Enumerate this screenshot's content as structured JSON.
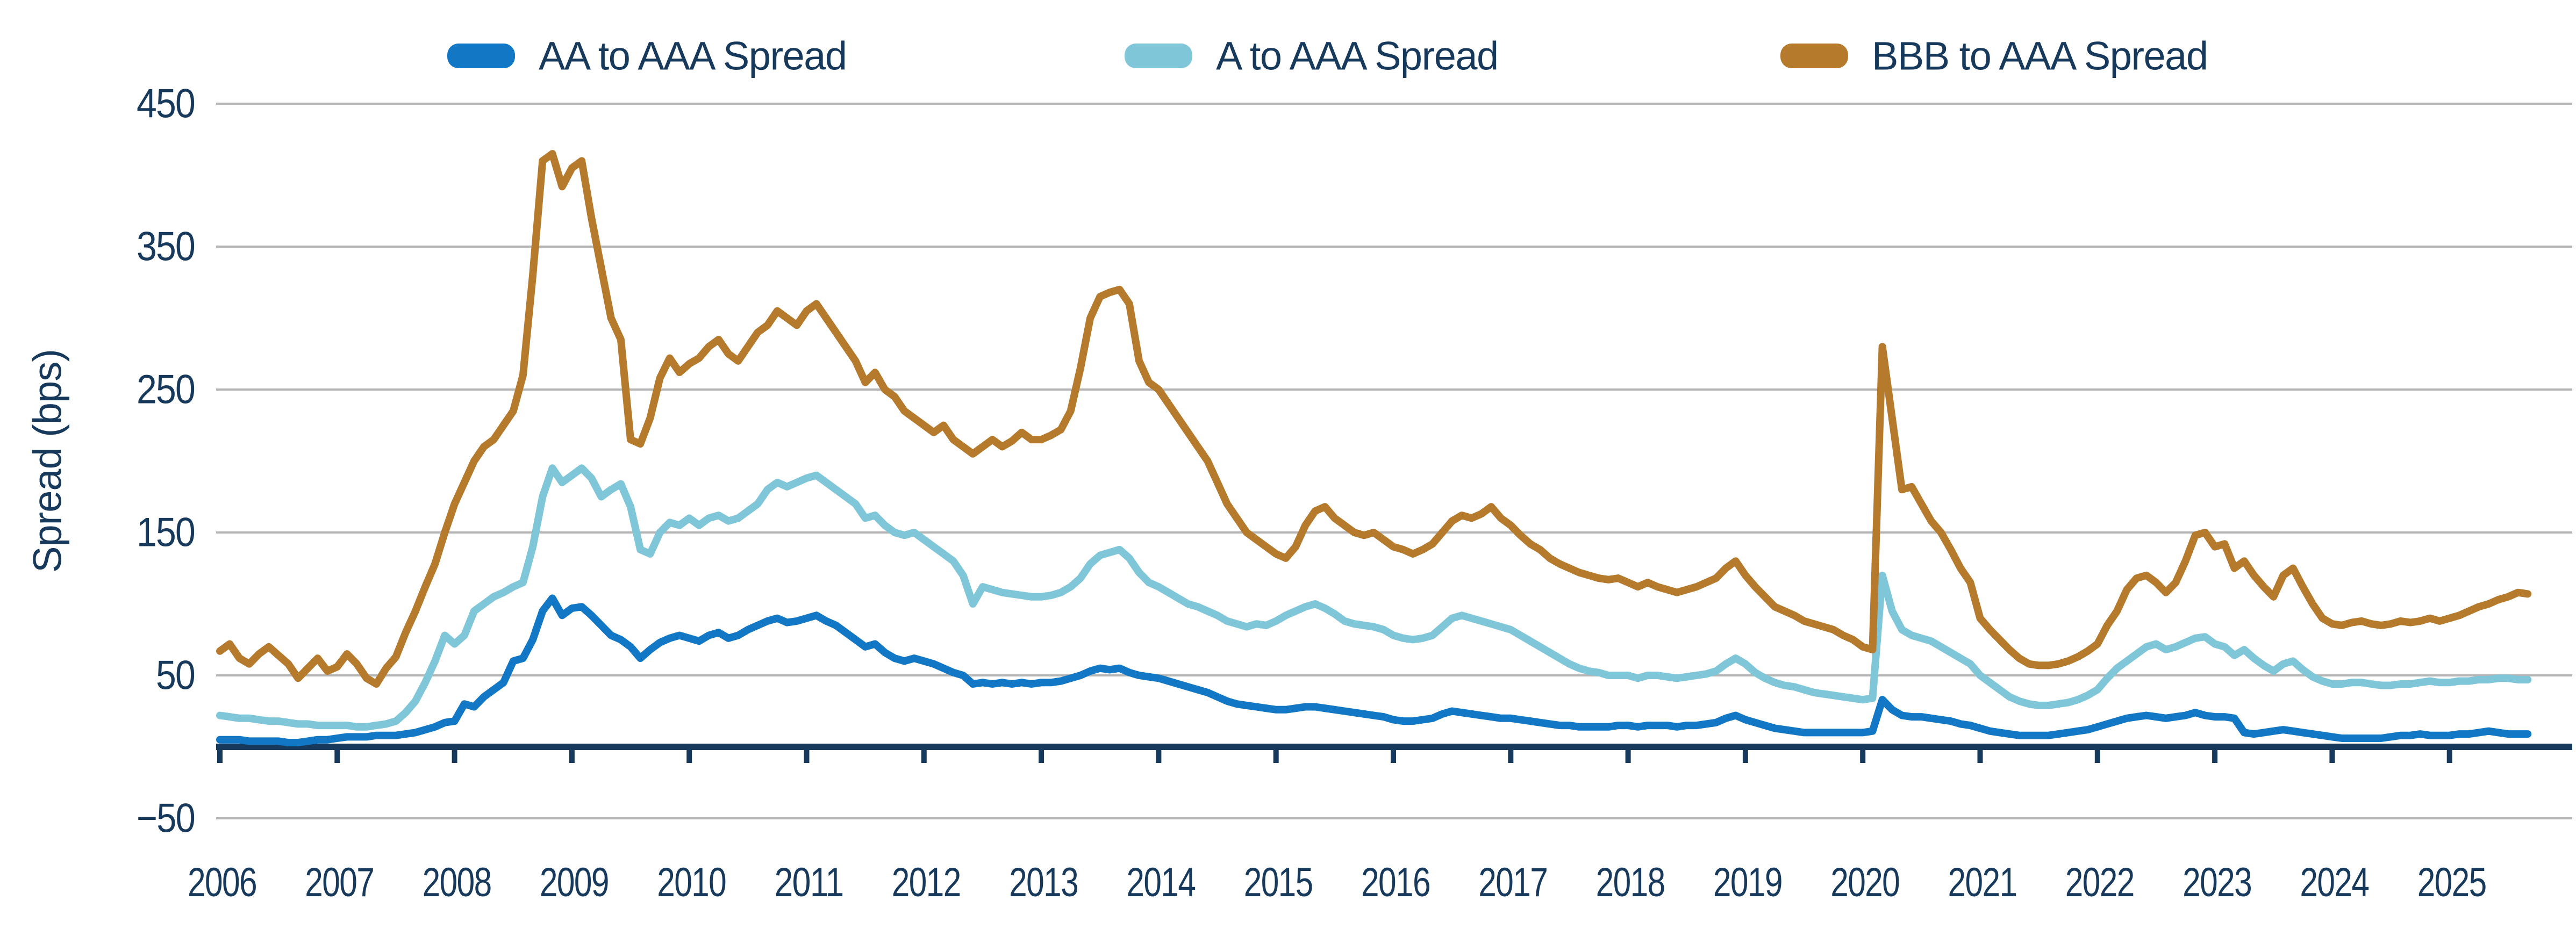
{
  "chart_data": {
    "type": "line",
    "title": "",
    "ylabel": "Spread (bps)",
    "xlabel": "",
    "ylim": [
      -50,
      450
    ],
    "y_ticks": [
      450,
      350,
      250,
      150,
      50,
      -50
    ],
    "y_tick_labels": [
      "450",
      "350",
      "250",
      "150",
      "50",
      "−50"
    ],
    "x_tick_labels": [
      "2006",
      "2007",
      "2008",
      "2009",
      "2010",
      "2011",
      "2012",
      "2013",
      "2014",
      "2015",
      "2016",
      "2017",
      "2018",
      "2019",
      "2020",
      "2021",
      "2022",
      "2023",
      "2024",
      "2025"
    ],
    "x_start": "2006-01",
    "x_step": "monthly",
    "grid": "horizontal",
    "legend_position": "top",
    "colors": {
      "text_and_axis": "#17395c",
      "gridline": "#b5b5b5",
      "background": "#ffffff"
    },
    "series": [
      {
        "name": "AA to AAA Spread",
        "color": "#1277c5",
        "values": [
          5,
          5,
          5,
          4,
          4,
          4,
          4,
          3,
          3,
          4,
          5,
          5,
          6,
          7,
          7,
          7,
          8,
          8,
          8,
          9,
          10,
          12,
          14,
          17,
          18,
          30,
          28,
          35,
          40,
          45,
          60,
          62,
          75,
          95,
          104,
          92,
          97,
          98,
          92,
          85,
          78,
          75,
          70,
          62,
          68,
          73,
          76,
          78,
          76,
          74,
          78,
          80,
          76,
          78,
          82,
          85,
          88,
          90,
          87,
          88,
          90,
          92,
          88,
          85,
          80,
          75,
          70,
          72,
          66,
          62,
          60,
          62,
          60,
          58,
          55,
          52,
          50,
          44,
          45,
          44,
          45,
          44,
          45,
          44,
          45,
          45,
          46,
          48,
          50,
          53,
          55,
          54,
          55,
          52,
          50,
          49,
          48,
          46,
          44,
          42,
          40,
          38,
          35,
          32,
          30,
          29,
          28,
          27,
          26,
          26,
          27,
          28,
          28,
          27,
          26,
          25,
          24,
          23,
          22,
          21,
          19,
          18,
          18,
          19,
          20,
          23,
          25,
          24,
          23,
          22,
          21,
          20,
          20,
          19,
          18,
          17,
          16,
          15,
          15,
          14,
          14,
          14,
          14,
          15,
          15,
          14,
          15,
          15,
          15,
          14,
          15,
          15,
          16,
          17,
          20,
          22,
          19,
          17,
          15,
          13,
          12,
          11,
          10,
          10,
          10,
          10,
          10,
          10,
          10,
          11,
          33,
          26,
          22,
          21,
          21,
          20,
          19,
          18,
          16,
          15,
          13,
          11,
          10,
          9,
          8,
          8,
          8,
          8,
          9,
          10,
          11,
          12,
          14,
          16,
          18,
          20,
          21,
          22,
          21,
          20,
          21,
          22,
          24,
          22,
          21,
          21,
          20,
          10,
          9,
          10,
          11,
          12,
          11,
          10,
          9,
          8,
          7,
          6,
          6,
          6,
          6,
          6,
          7,
          8,
          8,
          9,
          8,
          8,
          8,
          9,
          9,
          10,
          11,
          10,
          9,
          9,
          9
        ]
      },
      {
        "name": "A to AAA Spread",
        "color": "#7fc7d8",
        "values": [
          22,
          21,
          20,
          20,
          19,
          18,
          18,
          17,
          16,
          16,
          15,
          15,
          15,
          15,
          14,
          14,
          15,
          16,
          18,
          24,
          32,
          45,
          60,
          78,
          72,
          78,
          95,
          100,
          105,
          108,
          112,
          115,
          140,
          175,
          195,
          185,
          190,
          195,
          188,
          175,
          180,
          184,
          168,
          138,
          135,
          150,
          157,
          155,
          160,
          155,
          160,
          162,
          158,
          160,
          165,
          170,
          180,
          185,
          182,
          185,
          188,
          190,
          185,
          180,
          175,
          170,
          160,
          162,
          155,
          150,
          148,
          150,
          145,
          140,
          135,
          130,
          120,
          100,
          112,
          110,
          108,
          107,
          106,
          105,
          105,
          106,
          108,
          112,
          118,
          128,
          134,
          136,
          138,
          132,
          122,
          115,
          112,
          108,
          104,
          100,
          98,
          95,
          92,
          88,
          86,
          84,
          86,
          85,
          88,
          92,
          95,
          98,
          100,
          97,
          93,
          88,
          86,
          85,
          84,
          82,
          78,
          76,
          75,
          76,
          78,
          84,
          90,
          92,
          90,
          88,
          86,
          84,
          82,
          78,
          74,
          70,
          66,
          62,
          58,
          55,
          53,
          52,
          50,
          50,
          50,
          48,
          50,
          50,
          49,
          48,
          49,
          50,
          51,
          53,
          58,
          62,
          58,
          52,
          48,
          45,
          43,
          42,
          40,
          38,
          37,
          36,
          35,
          34,
          33,
          34,
          120,
          95,
          82,
          78,
          76,
          74,
          70,
          66,
          62,
          58,
          50,
          45,
          40,
          35,
          32,
          30,
          29,
          29,
          30,
          31,
          33,
          36,
          40,
          48,
          55,
          60,
          65,
          70,
          72,
          68,
          70,
          73,
          76,
          77,
          72,
          70,
          64,
          68,
          62,
          57,
          53,
          58,
          60,
          54,
          49,
          46,
          44,
          44,
          45,
          45,
          44,
          43,
          43,
          44,
          44,
          45,
          46,
          45,
          45,
          46,
          46,
          47,
          47,
          48,
          48,
          47,
          47
        ]
      },
      {
        "name": "BBB to AAA Spread",
        "color": "#b57a2c",
        "values": [
          67,
          72,
          62,
          58,
          65,
          70,
          64,
          58,
          48,
          55,
          62,
          53,
          56,
          65,
          58,
          48,
          44,
          55,
          63,
          80,
          95,
          112,
          128,
          150,
          170,
          185,
          200,
          210,
          215,
          225,
          235,
          260,
          330,
          410,
          415,
          392,
          405,
          410,
          370,
          335,
          300,
          285,
          215,
          212,
          230,
          258,
          272,
          262,
          268,
          272,
          280,
          285,
          275,
          270,
          280,
          290,
          295,
          305,
          300,
          295,
          305,
          310,
          300,
          290,
          280,
          270,
          255,
          262,
          250,
          245,
          235,
          230,
          225,
          220,
          225,
          215,
          210,
          205,
          210,
          215,
          210,
          214,
          220,
          215,
          215,
          218,
          222,
          235,
          265,
          300,
          315,
          318,
          320,
          310,
          270,
          255,
          250,
          240,
          230,
          220,
          210,
          200,
          185,
          170,
          160,
          150,
          145,
          140,
          135,
          132,
          140,
          155,
          165,
          168,
          160,
          155,
          150,
          148,
          150,
          145,
          140,
          138,
          135,
          138,
          142,
          150,
          158,
          162,
          160,
          163,
          168,
          160,
          155,
          148,
          142,
          138,
          132,
          128,
          125,
          122,
          120,
          118,
          117,
          118,
          115,
          112,
          115,
          112,
          110,
          108,
          110,
          112,
          115,
          118,
          125,
          130,
          120,
          112,
          105,
          98,
          95,
          92,
          88,
          86,
          84,
          82,
          78,
          75,
          70,
          68,
          280,
          230,
          180,
          182,
          170,
          158,
          150,
          138,
          125,
          115,
          90,
          82,
          75,
          68,
          62,
          58,
          57,
          57,
          58,
          60,
          63,
          67,
          72,
          85,
          95,
          110,
          118,
          120,
          115,
          108,
          115,
          130,
          148,
          150,
          140,
          142,
          125,
          130,
          120,
          112,
          105,
          120,
          125,
          112,
          100,
          90,
          86,
          85,
          87,
          88,
          86,
          85,
          86,
          88,
          87,
          88,
          90,
          88,
          90,
          92,
          95,
          98,
          100,
          103,
          105,
          108,
          107
        ]
      }
    ]
  }
}
